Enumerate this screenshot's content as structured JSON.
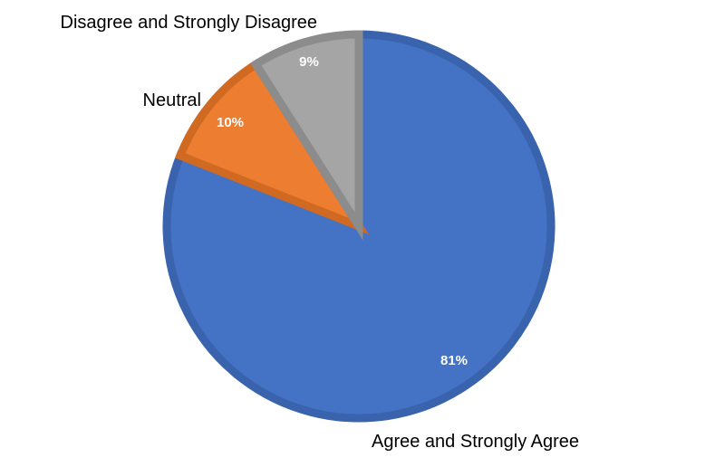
{
  "chart_data": {
    "type": "pie",
    "categories": [
      "Agree and Strongly Agree",
      "Neutral",
      "Disagree and Strongly Disagree"
    ],
    "values": [
      81,
      10,
      9
    ],
    "value_labels": [
      "81%",
      "10%",
      "9%"
    ],
    "colors": [
      "#4472C4",
      "#ED7D31",
      "#A5A5A5"
    ],
    "border_colors": [
      "#3A63AD",
      "#D06A22",
      "#8C8C8C"
    ],
    "legend": "none",
    "title": ""
  }
}
